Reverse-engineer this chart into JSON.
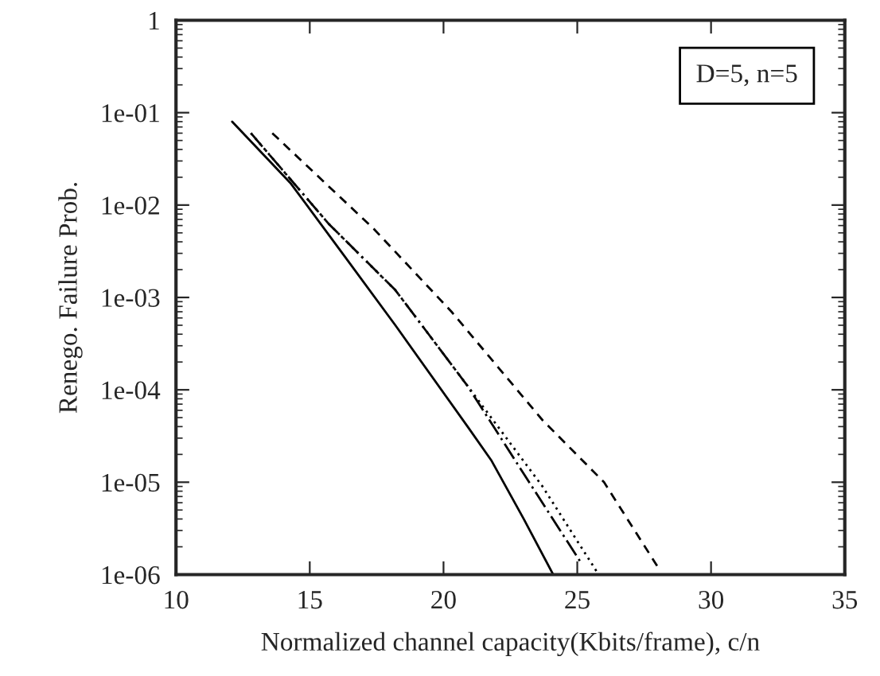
{
  "chart_data": {
    "type": "line",
    "xlabel": "Normalized channel capacity(Kbits/frame), c/n",
    "ylabel": "Renego. Failure Prob.",
    "log": "y",
    "xlim": [
      10,
      35
    ],
    "xticks": [
      10,
      15,
      20,
      25,
      30,
      35
    ],
    "ylim": [
      1e-06,
      1
    ],
    "yticks": [
      {
        "value": 1e-06,
        "label": "1e-06"
      },
      {
        "value": 1e-05,
        "label": "1e-05"
      },
      {
        "value": 0.0001,
        "label": "1e-04"
      },
      {
        "value": 0.001,
        "label": "1e-03"
      },
      {
        "value": 0.01,
        "label": "1e-02"
      },
      {
        "value": 0.1,
        "label": "1e-01"
      },
      {
        "value": 1,
        "label": "1"
      }
    ],
    "annotations": [
      "D=5, n=5"
    ],
    "series": [
      {
        "color": "#000000",
        "line_style": "solid",
        "x": [
          12.1,
          14.3,
          16.3,
          18.2,
          20.9,
          21.8,
          23.0,
          24.1
        ],
        "values": [
          0.08,
          0.017,
          0.0028,
          0.0005,
          4e-05,
          1.7e-05,
          4e-06,
          1e-06
        ]
      },
      {
        "color": "#000000",
        "line_style": "dashdot",
        "x": [
          12.8,
          15.7,
          18.2,
          20.9,
          23.2,
          25.1
        ],
        "values": [
          0.06,
          0.0063,
          0.0012,
          0.00011,
          1e-05,
          1.4e-06
        ]
      },
      {
        "color": "#000000",
        "line_style": "dotted",
        "x": [
          12.8,
          15.7,
          18.2,
          20.9,
          23.7,
          25.8
        ],
        "values": [
          0.06,
          0.0063,
          0.0012,
          0.00011,
          9e-06,
          1e-06
        ]
      },
      {
        "color": "#000000",
        "line_style": "dashed",
        "x": [
          13.6,
          17.4,
          20.3,
          23.7,
          26.0,
          28.1
        ],
        "values": [
          0.06,
          0.0055,
          0.0007,
          4.7e-05,
          1e-05,
          1.1e-06
        ]
      }
    ]
  }
}
